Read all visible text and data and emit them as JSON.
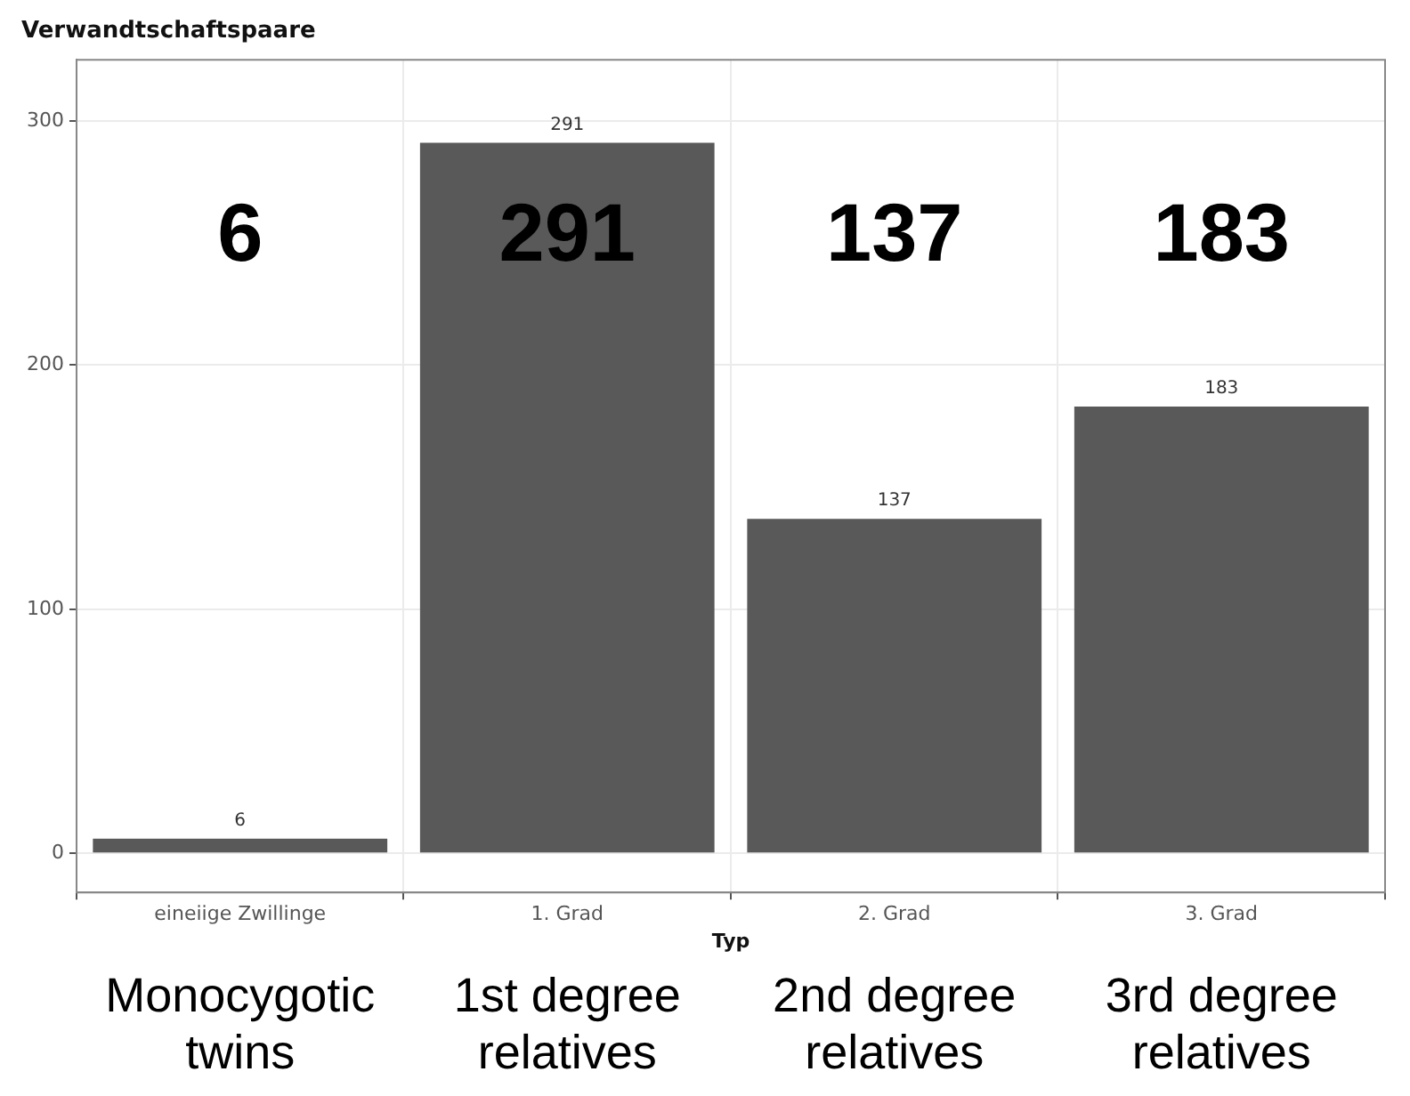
{
  "chart_data": {
    "type": "bar",
    "title": "Verwandtschaftspaare",
    "xlabel": "Typ",
    "categories": [
      "eineiige Zwillinge",
      "1. Grad",
      "2. Grad",
      "3. Grad"
    ],
    "values": [
      6,
      291,
      137,
      183
    ],
    "color": "#595959",
    "ylim": [
      -16,
      325
    ],
    "yticks": [
      0,
      100,
      200,
      300
    ],
    "grid": true,
    "data_labels": true,
    "annotations": [
      "6",
      "291",
      "137",
      "183",
      "Monocygotic twins",
      "1st degree relatives",
      "2nd degree relatives",
      "3rd degree relatives"
    ]
  }
}
